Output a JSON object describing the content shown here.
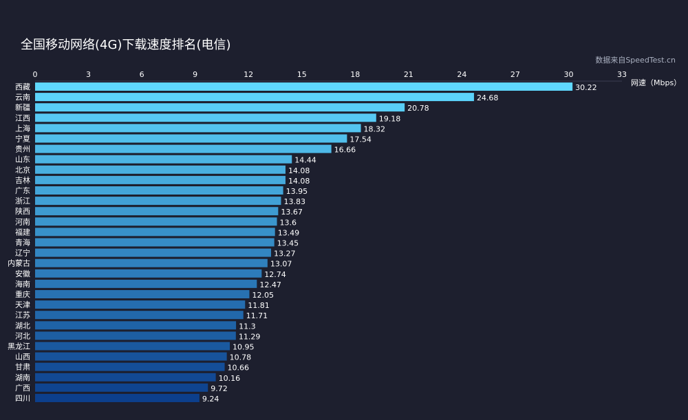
{
  "chart_data": {
    "type": "bar",
    "orientation": "horizontal",
    "title": "全国移动网络(4G)下载速度排名(电信)",
    "subtitle": "数据来自SpeedTest.cn",
    "xlabel": "网速（Mbps）",
    "ylabel": "",
    "xlim": [
      0,
      33
    ],
    "xticks": [
      0,
      3,
      6,
      9,
      12,
      15,
      18,
      21,
      24,
      27,
      30,
      33
    ],
    "xaxis_position": "top",
    "grid": false,
    "categories": [
      "西藏",
      "云南",
      "新疆",
      "江西",
      "上海",
      "宁夏",
      "贵州",
      "山东",
      "北京",
      "吉林",
      "广东",
      "浙江",
      "陕西",
      "河南",
      "福建",
      "青海",
      "辽宁",
      "内蒙古",
      "安徽",
      "海南",
      "重庆",
      "天津",
      "江苏",
      "湖北",
      "河北",
      "黑龙江",
      "山西",
      "甘肃",
      "湖南",
      "广西",
      "四川"
    ],
    "values": [
      30.22,
      24.68,
      20.78,
      19.18,
      18.32,
      17.54,
      16.66,
      14.44,
      14.08,
      14.08,
      13.95,
      13.83,
      13.67,
      13.6,
      13.49,
      13.45,
      13.27,
      13.07,
      12.74,
      12.47,
      12.05,
      11.81,
      11.71,
      11.3,
      11.29,
      10.95,
      10.78,
      10.66,
      10.16,
      9.72,
      9.24
    ],
    "colors": {
      "top": "#5fd8ff",
      "bottom": "#0c3f8c",
      "background": "#1d1f2e",
      "text": "#ffffff"
    }
  }
}
